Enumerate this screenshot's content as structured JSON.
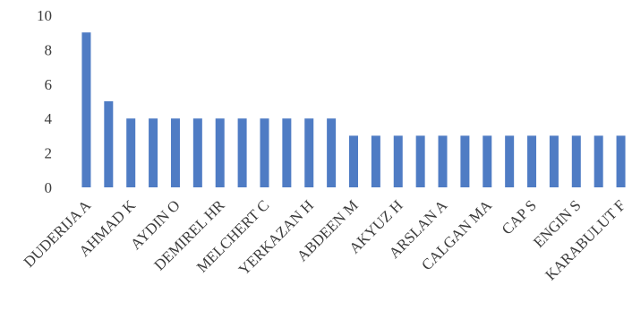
{
  "chart_data": {
    "type": "bar",
    "title": "",
    "xlabel": "",
    "ylabel": "",
    "ylim": [
      0,
      10
    ],
    "yticks": [
      0,
      2,
      4,
      6,
      8,
      10
    ],
    "grid": false,
    "legend": "none",
    "bar_color": "#4f7cc4",
    "categories": [
      "DUDERIJA A",
      "",
      "AHMAD K",
      "",
      "AYDIN O",
      "",
      "DEMIREL HR",
      "",
      "MELCHERT C",
      "",
      "YERKAZAN H",
      "",
      "ABDEEN M",
      "",
      "AKYUZ H",
      "",
      "ARSLAN A",
      "",
      "CALGAN MA",
      "",
      "CAP S",
      "",
      "ENGIN S",
      "",
      "KARABULUT F"
    ],
    "values": [
      9,
      5,
      4,
      4,
      4,
      4,
      4,
      4,
      4,
      4,
      4,
      4,
      3,
      3,
      3,
      3,
      3,
      3,
      3,
      3,
      3,
      3,
      3,
      3,
      3
    ]
  }
}
